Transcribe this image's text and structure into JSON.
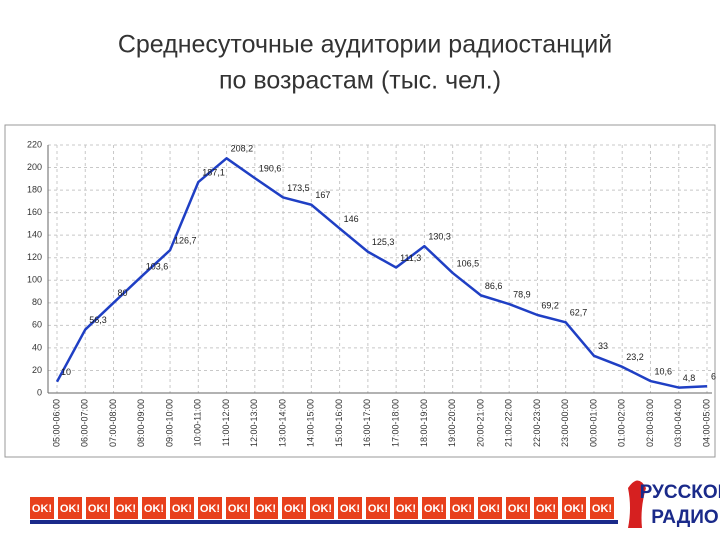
{
  "chart_data": {
    "type": "line",
    "title": [
      "Среднесуточные аудитории радиостанций",
      "по возрастам (тыс. чел.)"
    ],
    "categories": [
      "05:00-06:00",
      "06:00-07:00",
      "07:00-08:00",
      "08:00-09:00",
      "09:00-10:00",
      "10:00-11:00",
      "11:00-12:00",
      "12:00-13:00",
      "13:00-14:00",
      "14:00-15:00",
      "15:00-16:00",
      "16:00-17:00",
      "17:00-18:00",
      "18:00-19:00",
      "19:00-20:00",
      "20:00-21:00",
      "21:00-22:00",
      "22:00-23:00",
      "23:00-00:00",
      "00:00-01:00",
      "01:00-02:00",
      "02:00-03:00",
      "03:00-04:00",
      "04:00-05:00"
    ],
    "series": [
      {
        "name": "Русское Радио",
        "color": "#1f3fc4",
        "values": [
          10,
          56.3,
          80,
          103.6,
          126.7,
          187.1,
          208.2,
          190.6,
          173.5,
          167,
          146,
          125.3,
          111.3,
          130.3,
          106.5,
          86.6,
          78.9,
          69.2,
          62.7,
          33,
          23.2,
          10.6,
          4.8,
          6
        ],
        "value_labels": [
          "10",
          "56,3",
          "80",
          "103,6",
          "126,7",
          "187,1",
          "208,2",
          "190,6",
          "173,5",
          "167",
          "146",
          "125,3",
          "111,3",
          "130,3",
          "106,5",
          "86,6",
          "78,9",
          "69,2",
          "62,7",
          "33",
          "23,2",
          "10,6",
          "4,8",
          "6"
        ]
      }
    ],
    "ylim": [
      0,
      220
    ],
    "yticks": [
      0,
      20,
      40,
      60,
      80,
      100,
      120,
      140,
      160,
      180,
      200,
      220
    ],
    "grid": true
  },
  "footer": {
    "badge": "OK!",
    "logo": [
      "РУССКОЕ",
      "РАДИО"
    ]
  }
}
